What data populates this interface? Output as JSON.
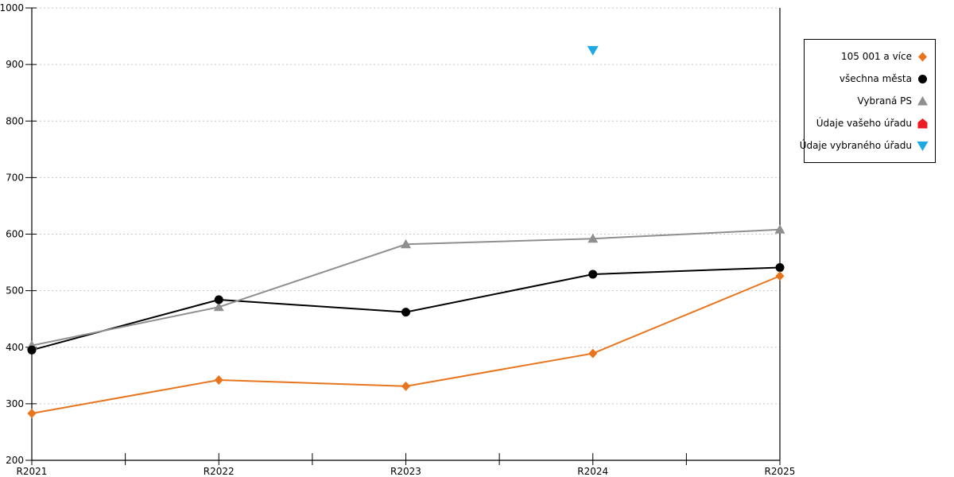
{
  "chart_data": {
    "type": "line",
    "title": "",
    "categories": [
      "R2021",
      "R2022",
      "R2023",
      "R2024",
      "R2025"
    ],
    "series": [
      {
        "name": "105 001 a více",
        "color": "#E8751D",
        "marker": "diamond",
        "values": [
          283,
          342,
          331,
          389,
          526
        ]
      },
      {
        "name": "všechna města",
        "color": "#000000",
        "marker": "circle",
        "values": [
          395,
          484,
          462,
          529,
          541
        ]
      },
      {
        "name": "Vybraná PS",
        "color": "#8F8F8F",
        "marker": "triangle-up",
        "values": [
          403,
          471,
          582,
          592,
          608
        ]
      },
      {
        "name": "Údaje vašeho úřadu",
        "color": "#ED1C24",
        "marker": "pentagon-up",
        "values": [
          null,
          null,
          null,
          null,
          null
        ]
      },
      {
        "name": "Údaje vybraného úřadu",
        "color": "#1CAAE2",
        "marker": "triangle-down",
        "values": [
          null,
          null,
          null,
          925,
          null
        ]
      }
    ],
    "ylim": [
      200,
      1000
    ],
    "ytick_step": 100,
    "ytick_labels": [
      "200",
      "300",
      "400",
      "500",
      "600",
      "700",
      "800",
      "900",
      "1000"
    ],
    "xtick_labels": [
      "R2021",
      "R2022",
      "R2023",
      "R2024",
      "R2025"
    ],
    "grid": "horizontal-dotted",
    "legend_position": "right",
    "colors": {
      "gridline": "#C6C6C6",
      "axis": "#000000",
      "background": "#FFFFFF"
    }
  }
}
